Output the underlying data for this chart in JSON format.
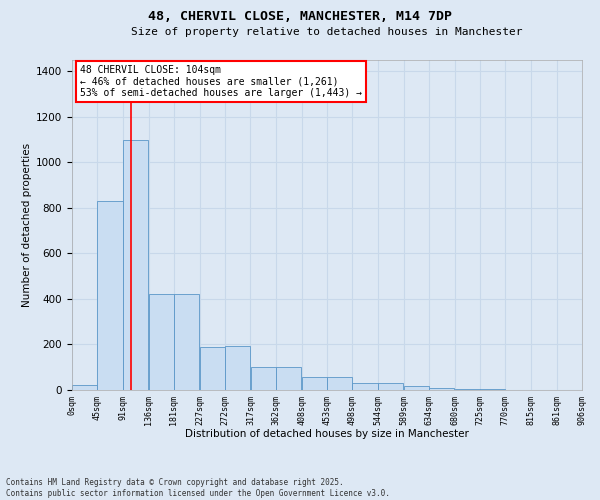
{
  "title_line1": "48, CHERVIL CLOSE, MANCHESTER, M14 7DP",
  "title_line2": "Size of property relative to detached houses in Manchester",
  "xlabel": "Distribution of detached houses by size in Manchester",
  "ylabel": "Number of detached properties",
  "bar_bins": [
    0,
    45,
    91,
    136,
    181,
    227,
    272,
    317,
    362,
    408,
    453,
    498,
    544,
    589,
    634,
    680,
    725,
    770,
    815,
    861,
    906
  ],
  "bar_values": [
    20,
    830,
    1100,
    420,
    420,
    190,
    195,
    100,
    100,
    55,
    55,
    30,
    30,
    18,
    10,
    5,
    3,
    2,
    1,
    1
  ],
  "bar_color": "#c9ddf2",
  "bar_edge_color": "#5a96c8",
  "grid_color": "#c8d8ea",
  "bg_color": "#dde8f4",
  "fig_bg_color": "#dde8f4",
  "red_line_x": 104,
  "annotation_box_text": "48 CHERVIL CLOSE: 104sqm\n← 46% of detached houses are smaller (1,261)\n53% of semi-detached houses are larger (1,443) →",
  "ylim": [
    0,
    1450
  ],
  "yticks": [
    0,
    200,
    400,
    600,
    800,
    1000,
    1200,
    1400
  ],
  "copyright_text": "Contains HM Land Registry data © Crown copyright and database right 2025.\nContains public sector information licensed under the Open Government Licence v3.0.",
  "tick_labels": [
    "0sqm",
    "45sqm",
    "91sqm",
    "136sqm",
    "181sqm",
    "227sqm",
    "272sqm",
    "317sqm",
    "362sqm",
    "408sqm",
    "453sqm",
    "498sqm",
    "544sqm",
    "589sqm",
    "634sqm",
    "680sqm",
    "725sqm",
    "770sqm",
    "815sqm",
    "861sqm",
    "906sqm"
  ]
}
